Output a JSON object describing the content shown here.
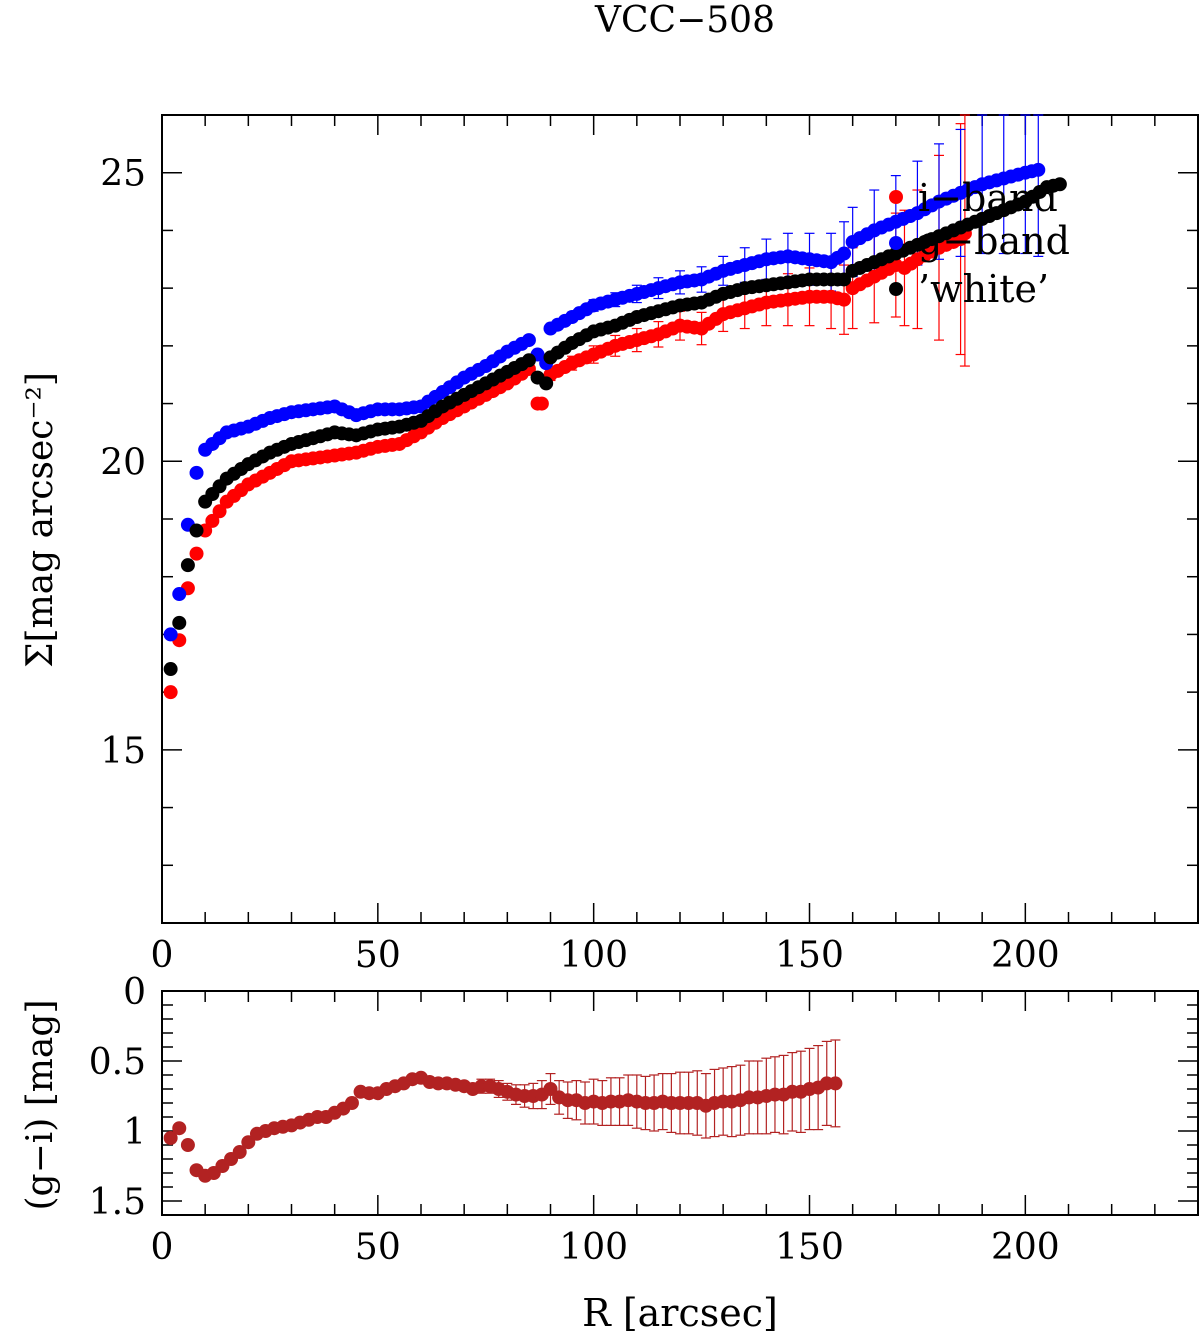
{
  "chart_data": [
    {
      "type": "scatter",
      "title": "VCC−508",
      "xlabel": "",
      "ylabel": "Σ[mag arcsec⁻²]",
      "xlim": [
        0,
        240
      ],
      "ylim": [
        26,
        12
      ],
      "y_inverted": true,
      "xticks": [
        0,
        50,
        100,
        150,
        200
      ],
      "xticklabels": [
        "0",
        "50",
        "100",
        "150",
        "200"
      ],
      "yticks": [
        15,
        20,
        25
      ],
      "yticklabels": [
        "15",
        "20",
        "25"
      ],
      "legend": {
        "position": "top-right",
        "entries": [
          {
            "label": "i−band",
            "color": "#ff0000"
          },
          {
            "label": "g−band",
            "color": "#0000ff"
          },
          {
            "label": "’white’",
            "color": "#000000"
          }
        ]
      },
      "series": [
        {
          "name": "i−band",
          "color": "#ff0000",
          "x": [
            2,
            4,
            6,
            8,
            10,
            15,
            20,
            25,
            30,
            35,
            40,
            45,
            50,
            55,
            60,
            65,
            70,
            75,
            80,
            85,
            87,
            88,
            90,
            95,
            100,
            105,
            110,
            115,
            120,
            125,
            130,
            135,
            140,
            145,
            150,
            155,
            158,
            160,
            165,
            170,
            172,
            175,
            180,
            185,
            186
          ],
          "y": [
            16.0,
            16.9,
            17.8,
            18.4,
            18.8,
            19.3,
            19.6,
            19.8,
            20.0,
            20.05,
            20.1,
            20.15,
            20.25,
            20.3,
            20.5,
            20.75,
            20.95,
            21.15,
            21.35,
            21.6,
            21.0,
            21.0,
            21.5,
            21.7,
            21.85,
            22.0,
            22.1,
            22.2,
            22.35,
            22.3,
            22.55,
            22.65,
            22.75,
            22.8,
            22.85,
            22.85,
            22.8,
            23.0,
            23.2,
            23.4,
            23.35,
            23.5,
            23.7,
            23.85,
            23.95
          ],
          "err": [
            0.0,
            0.0,
            0.0,
            0.0,
            0.0,
            0.0,
            0.0,
            0.0,
            0.0,
            0.0,
            0.0,
            0.0,
            0.0,
            0.0,
            0.0,
            0.0,
            0.0,
            0.0,
            0.0,
            0.0,
            0.0,
            0.0,
            0.1,
            0.12,
            0.15,
            0.18,
            0.2,
            0.22,
            0.25,
            0.28,
            0.3,
            0.35,
            0.4,
            0.45,
            0.5,
            0.55,
            0.6,
            0.7,
            0.8,
            0.9,
            1.0,
            1.2,
            1.6,
            2.0,
            2.3
          ]
        },
        {
          "name": "g−band",
          "color": "#0000ff",
          "x": [
            2,
            4,
            6,
            8,
            10,
            15,
            20,
            25,
            30,
            35,
            40,
            45,
            50,
            55,
            60,
            65,
            70,
            75,
            80,
            85,
            87,
            89,
            90,
            95,
            100,
            105,
            110,
            115,
            120,
            125,
            130,
            135,
            140,
            145,
            150,
            155,
            158,
            160,
            165,
            170,
            175,
            180,
            185,
            190,
            195,
            200,
            203
          ],
          "y": [
            17.0,
            17.7,
            18.9,
            19.8,
            20.2,
            20.5,
            20.6,
            20.75,
            20.85,
            20.9,
            20.95,
            20.8,
            20.9,
            20.9,
            20.95,
            21.2,
            21.45,
            21.65,
            21.9,
            22.1,
            21.85,
            21.7,
            22.3,
            22.5,
            22.7,
            22.8,
            22.9,
            23.0,
            23.1,
            23.15,
            23.3,
            23.4,
            23.5,
            23.55,
            23.5,
            23.45,
            23.6,
            23.8,
            24.0,
            24.15,
            24.3,
            24.5,
            24.65,
            24.8,
            24.9,
            25.0,
            25.05
          ],
          "err": [
            0.0,
            0.0,
            0.0,
            0.0,
            0.0,
            0.0,
            0.0,
            0.0,
            0.0,
            0.0,
            0.0,
            0.0,
            0.0,
            0.0,
            0.0,
            0.0,
            0.0,
            0.0,
            0.0,
            0.0,
            0.0,
            0.0,
            0.05,
            0.08,
            0.1,
            0.12,
            0.15,
            0.18,
            0.2,
            0.22,
            0.25,
            0.3,
            0.35,
            0.4,
            0.45,
            0.5,
            0.55,
            0.6,
            0.7,
            0.8,
            0.9,
            1.0,
            1.1,
            1.2,
            1.3,
            1.4,
            1.5
          ]
        },
        {
          "name": "’white’",
          "color": "#000000",
          "x": [
            2,
            4,
            6,
            8,
            10,
            15,
            20,
            25,
            30,
            35,
            40,
            45,
            50,
            55,
            60,
            65,
            70,
            75,
            80,
            85,
            87,
            89,
            90,
            95,
            100,
            105,
            110,
            115,
            120,
            125,
            130,
            135,
            140,
            145,
            150,
            155,
            158,
            160,
            165,
            170,
            175,
            180,
            185,
            190,
            195,
            200,
            205,
            208
          ],
          "y": [
            16.4,
            17.2,
            18.2,
            18.8,
            19.3,
            19.7,
            19.95,
            20.15,
            20.3,
            20.4,
            20.5,
            20.45,
            20.55,
            20.6,
            20.7,
            20.95,
            21.15,
            21.35,
            21.55,
            21.75,
            21.45,
            21.35,
            21.8,
            22.05,
            22.25,
            22.35,
            22.5,
            22.6,
            22.7,
            22.75,
            22.9,
            23.0,
            23.05,
            23.1,
            23.15,
            23.15,
            23.15,
            23.3,
            23.45,
            23.6,
            23.75,
            23.9,
            24.05,
            24.2,
            24.35,
            24.5,
            24.75,
            24.8
          ],
          "err": []
        }
      ]
    },
    {
      "type": "scatter",
      "title": "",
      "xlabel": "R [arcsec]",
      "ylabel": "(g−i) [mag]",
      "xlim": [
        0,
        240
      ],
      "ylim": [
        0,
        1.6
      ],
      "xticks": [
        0,
        50,
        100,
        150,
        200
      ],
      "xticklabels": [
        "0",
        "50",
        "100",
        "150",
        "200"
      ],
      "yticks": [
        0,
        0.5,
        1,
        1.5
      ],
      "yticklabels": [
        "0",
        "0.5",
        "1",
        "1.5"
      ],
      "series": [
        {
          "name": "g−i",
          "color": "#b22222",
          "x": [
            2,
            4,
            6,
            8,
            10,
            12,
            14,
            16,
            18,
            20,
            22,
            24,
            26,
            28,
            30,
            32,
            34,
            36,
            38,
            40,
            42,
            44,
            46,
            48,
            50,
            52,
            54,
            56,
            58,
            60,
            62,
            64,
            66,
            68,
            70,
            72,
            74,
            76,
            78,
            80,
            82,
            84,
            86,
            88,
            90,
            92,
            94,
            96,
            98,
            100,
            102,
            104,
            106,
            108,
            110,
            112,
            114,
            116,
            118,
            120,
            122,
            124,
            126,
            128,
            130,
            132,
            134,
            136,
            138,
            140,
            142,
            144,
            146,
            148,
            150,
            152,
            154,
            156
          ],
          "y": [
            1.05,
            0.98,
            1.1,
            1.28,
            1.32,
            1.3,
            1.25,
            1.2,
            1.15,
            1.08,
            1.02,
            1.0,
            0.98,
            0.97,
            0.96,
            0.94,
            0.92,
            0.9,
            0.9,
            0.87,
            0.84,
            0.8,
            0.72,
            0.73,
            0.73,
            0.7,
            0.68,
            0.66,
            0.63,
            0.62,
            0.65,
            0.66,
            0.66,
            0.67,
            0.68,
            0.7,
            0.68,
            0.68,
            0.7,
            0.72,
            0.74,
            0.75,
            0.75,
            0.74,
            0.7,
            0.76,
            0.78,
            0.78,
            0.8,
            0.79,
            0.8,
            0.79,
            0.79,
            0.78,
            0.79,
            0.8,
            0.8,
            0.79,
            0.8,
            0.8,
            0.8,
            0.8,
            0.82,
            0.8,
            0.79,
            0.79,
            0.78,
            0.76,
            0.76,
            0.75,
            0.74,
            0.74,
            0.72,
            0.72,
            0.7,
            0.69,
            0.66,
            0.66
          ],
          "err": [
            0.0,
            0.0,
            0.0,
            0.0,
            0.0,
            0.0,
            0.0,
            0.0,
            0.0,
            0.0,
            0.0,
            0.0,
            0.0,
            0.0,
            0.0,
            0.0,
            0.0,
            0.0,
            0.0,
            0.0,
            0.0,
            0.0,
            0.0,
            0.0,
            0.0,
            0.0,
            0.0,
            0.0,
            0.0,
            0.0,
            0.0,
            0.0,
            0.0,
            0.0,
            0.0,
            0.0,
            0.05,
            0.05,
            0.06,
            0.06,
            0.07,
            0.08,
            0.09,
            0.1,
            0.11,
            0.12,
            0.13,
            0.14,
            0.15,
            0.16,
            0.16,
            0.17,
            0.17,
            0.18,
            0.19,
            0.19,
            0.2,
            0.2,
            0.21,
            0.22,
            0.22,
            0.23,
            0.23,
            0.24,
            0.24,
            0.25,
            0.25,
            0.26,
            0.26,
            0.27,
            0.27,
            0.28,
            0.28,
            0.29,
            0.29,
            0.3,
            0.3,
            0.31
          ]
        }
      ]
    }
  ]
}
